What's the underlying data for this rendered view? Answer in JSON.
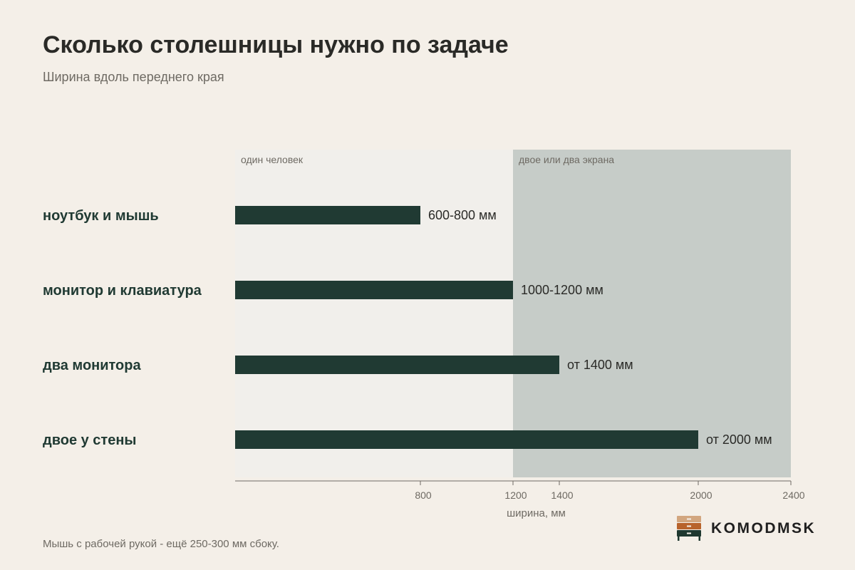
{
  "title": "Сколько столешницы нужно по задаче",
  "subtitle": "Ширина вдоль переднего края",
  "footnote": "Мышь с рабочей рукой - ещё 250-300 мм сбоку.",
  "brand": {
    "name": "KOMODMSK",
    "colors": [
      "#d2a67f",
      "#b8632b",
      "#1f3830"
    ]
  },
  "colors": {
    "bar": "#203a33",
    "zone1": "#f1efeb",
    "zone2": "#c6ccc8",
    "label": "#203a33",
    "axis": "#6e6a63"
  },
  "chart_data": {
    "type": "bar",
    "orientation": "horizontal",
    "categories": [
      "ноутбук и мышь",
      "монитор и клавиатура",
      "два монитора",
      "двое у стены"
    ],
    "values": [
      800,
      1200,
      1400,
      2000
    ],
    "value_labels": [
      "600-800 мм",
      "1000-1200 мм",
      "от 1400 мм",
      "от 2000 мм"
    ],
    "xlabel": "ширина, мм",
    "xlim": [
      0,
      2400
    ],
    "xticks": [
      800,
      1200,
      1400,
      2000,
      2400
    ],
    "zones": [
      {
        "label": "один человек",
        "from": 0,
        "to": 1200
      },
      {
        "label": "двое или два экрана",
        "from": 1200,
        "to": 2400
      }
    ]
  }
}
